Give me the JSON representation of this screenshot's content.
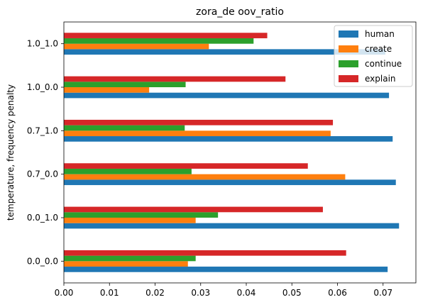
{
  "chart_data": {
    "type": "bar",
    "orientation": "horizontal",
    "title": "zora_de oov_ratio",
    "xlabel": "",
    "ylabel": "temperature, frequency penalty",
    "xlim": [
      0,
      0.0772
    ],
    "x_ticks": [
      "0.00",
      "0.01",
      "0.02",
      "0.03",
      "0.04",
      "0.05",
      "0.06",
      "0.07"
    ],
    "x_tick_values": [
      0,
      0.01,
      0.02,
      0.03,
      0.04,
      0.05,
      0.06,
      0.07
    ],
    "categories": [
      "0.0_0.0",
      "0.0_1.0",
      "0.7_0.0",
      "0.7_1.0",
      "1.0_0.0",
      "1.0_1.0"
    ],
    "series": [
      {
        "name": "human",
        "color": "#1f77b4",
        "values": [
          0.071,
          0.0735,
          0.0728,
          0.0721,
          0.0713,
          0.0705
        ]
      },
      {
        "name": "create",
        "color": "#ff7f0e",
        "values": [
          0.0272,
          0.0289,
          0.0617,
          0.0585,
          0.0187,
          0.0318
        ]
      },
      {
        "name": "continue",
        "color": "#2ca02c",
        "values": [
          0.0289,
          0.0338,
          0.028,
          0.0265,
          0.0267,
          0.0416
        ]
      },
      {
        "name": "explain",
        "color": "#d62728",
        "values": [
          0.0619,
          0.0568,
          0.0535,
          0.059,
          0.0486,
          0.0446
        ]
      }
    ],
    "legend_position": "upper right",
    "grid": false
  }
}
